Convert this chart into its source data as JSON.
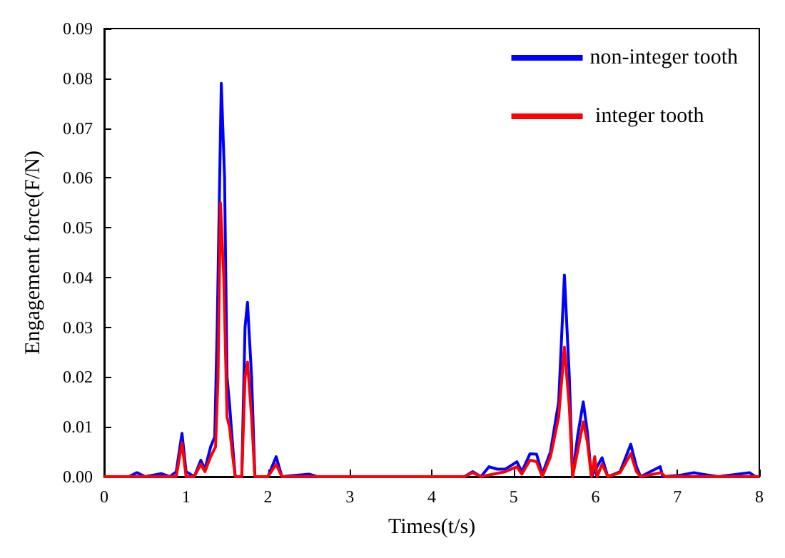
{
  "chart_data": {
    "type": "line",
    "xlabel": "Times(t/s)",
    "ylabel": "Engagement force(F/N)",
    "xlim": [
      0,
      8
    ],
    "xticks": [
      0,
      1,
      2,
      3,
      4,
      5,
      6,
      7,
      8
    ],
    "ylim": [
      0,
      0.09
    ],
    "yticks": [
      {
        "value": 0,
        "label": "0.00"
      },
      {
        "value": 0.01,
        "label": "0.01"
      },
      {
        "value": 0.02,
        "label": "0.02"
      },
      {
        "value": 0.03,
        "label": "0.03"
      },
      {
        "value": 0.04,
        "label": "0.04"
      },
      {
        "value": 0.05,
        "label": "0.05"
      },
      {
        "value": 0.06,
        "label": "0.06"
      },
      {
        "value": 0.07,
        "label": "0.07"
      },
      {
        "value": 0.08,
        "label": "0.08"
      },
      {
        "value": 0.09,
        "label": "0.09"
      }
    ],
    "grid": false,
    "legend": "top right",
    "marker": "none",
    "line_style": "solid",
    "series": [
      {
        "name": "non-integer tooth",
        "color": "#0000ff",
        "x": [
          0,
          0.3,
          0.4,
          0.5,
          0.7,
          0.8,
          0.88,
          0.95,
          1.0,
          1.1,
          1.18,
          1.23,
          1.3,
          1.35,
          1.38,
          1.43,
          1.47,
          1.5,
          1.53,
          1.57,
          1.6,
          1.68,
          1.72,
          1.75,
          1.8,
          1.84,
          2.0,
          2.1,
          2.17,
          2.5,
          2.6,
          3.4,
          4.4,
          4.5,
          4.6,
          4.7,
          4.8,
          4.9,
          5.04,
          5.1,
          5.2,
          5.28,
          5.35,
          5.45,
          5.55,
          5.62,
          5.68,
          5.72,
          5.78,
          5.85,
          5.9,
          5.95,
          6.08,
          6.15,
          6.3,
          6.43,
          6.5,
          6.55,
          6.79,
          6.82,
          7.0,
          7.2,
          7.3,
          7.5,
          7.88,
          7.95,
          8
        ],
        "values": [
          0,
          0,
          0.0008,
          0,
          0.0006,
          0,
          0.001,
          0.0087,
          0.001,
          0,
          0.0033,
          0.0015,
          0.006,
          0.008,
          0.03,
          0.079,
          0.06,
          0.02,
          0.0147,
          0.006,
          0,
          0,
          0.03,
          0.035,
          0.02,
          0,
          0,
          0.004,
          0,
          0.0005,
          0,
          0,
          0,
          0.001,
          0,
          0.002,
          0.0015,
          0.0015,
          0.003,
          0.001,
          0.0046,
          0.0045,
          0.0005,
          0.005,
          0.015,
          0.0405,
          0.02,
          0,
          0.008,
          0.015,
          0.009,
          0,
          0.0038,
          0,
          0.001,
          0.0065,
          0.002,
          0,
          0.002,
          0,
          0.0002,
          0.0008,
          0.0005,
          0,
          0.0008,
          0,
          0
        ]
      },
      {
        "name": " integer tooth",
        "color": "#ff0000",
        "x": [
          0,
          0.88,
          0.95,
          1.0,
          1.1,
          1.18,
          1.23,
          1.3,
          1.36,
          1.39,
          1.42,
          1.46,
          1.5,
          1.53,
          1.57,
          1.6,
          1.68,
          1.72,
          1.75,
          1.8,
          1.84,
          2.0,
          2.1,
          2.17,
          4.4,
          4.5,
          4.6,
          4.9,
          5.04,
          5.1,
          5.2,
          5.28,
          5.35,
          5.45,
          5.55,
          5.62,
          5.68,
          5.72,
          5.78,
          5.85,
          5.9,
          5.95,
          5.99,
          6.02,
          6.08,
          6.15,
          6.3,
          6.43,
          6.5,
          6.55,
          6.8,
          6.85,
          8
        ],
        "values": [
          0,
          0,
          0.0068,
          0,
          0,
          0.0025,
          0.001,
          0.004,
          0.006,
          0.02,
          0.055,
          0.04,
          0.012,
          0.01,
          0.004,
          0,
          0,
          0.02,
          0.023,
          0.012,
          0,
          0,
          0.0025,
          0,
          0,
          0.0008,
          0,
          0.001,
          0.002,
          0.0005,
          0.0033,
          0.003,
          0,
          0.004,
          0.012,
          0.026,
          0.014,
          0,
          0.005,
          0.011,
          0.007,
          0,
          0.004,
          0,
          0.0025,
          0,
          0.0008,
          0.0046,
          0.001,
          0,
          0.0008,
          0,
          0
        ]
      }
    ]
  }
}
